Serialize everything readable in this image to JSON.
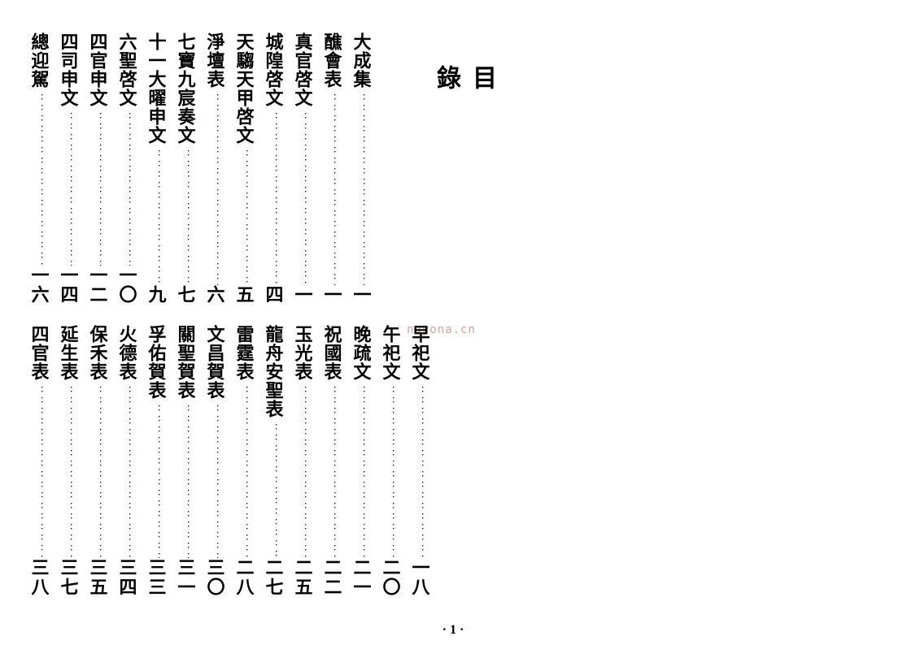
{
  "heading": "目錄",
  "watermark": "nayona.cn",
  "footer": "· 1 ·",
  "group1": [
    {
      "title": "大成集",
      "page": "一"
    },
    {
      "title": "醮會表",
      "page": "一"
    },
    {
      "title": "真官啓文",
      "page": "一"
    },
    {
      "title": "城隍啓文",
      "page": "四"
    },
    {
      "title": "天騶天甲啓文",
      "page": "五"
    },
    {
      "title": "淨壇表",
      "page": "六"
    },
    {
      "title": "七寶九宸奏文",
      "page": "七"
    },
    {
      "title": "十一大曜申文",
      "page": "九"
    },
    {
      "title": "六聖啓文",
      "page": "一〇"
    },
    {
      "title": "四官申文",
      "page": "一二"
    },
    {
      "title": "四司申文",
      "page": "一四"
    },
    {
      "title": "總迎駕",
      "page": "一六"
    }
  ],
  "group2": [
    {
      "title": "早祀文",
      "page": "一八"
    },
    {
      "title": "午祀文",
      "page": "二〇"
    },
    {
      "title": "晚疏文",
      "page": "二一"
    },
    {
      "title": "祝國表",
      "page": "二二"
    },
    {
      "title": "玉光表",
      "page": "二五"
    },
    {
      "title": "龍舟安聖表",
      "page": "二七"
    },
    {
      "title": "雷霆表",
      "page": "二八"
    },
    {
      "title": "文昌賀表",
      "page": "三〇"
    },
    {
      "title": "關聖賀表",
      "page": "三一"
    },
    {
      "title": "孚佑賀表",
      "page": "三三"
    },
    {
      "title": "火德表",
      "page": "三四"
    },
    {
      "title": "保禾表",
      "page": "三五"
    },
    {
      "title": "延生表",
      "page": "三七"
    },
    {
      "title": "四官表",
      "page": "三八"
    }
  ]
}
